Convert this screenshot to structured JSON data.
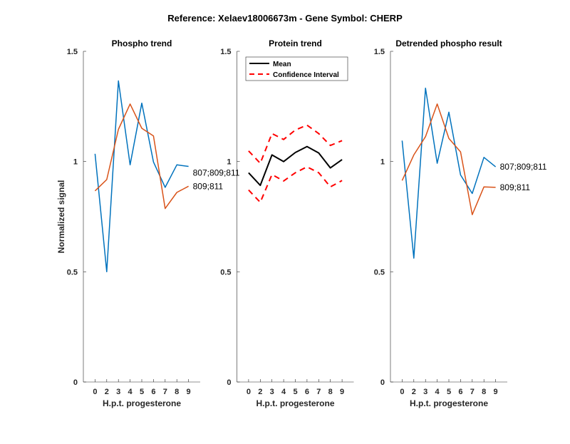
{
  "figure_title": "Reference:  Xelaev18006673m - Gene Symbol:  CHERP",
  "colors": {
    "site_a": "#0072BD",
    "site_b": "#D95319",
    "mean": "#000000",
    "ci": "#FF0000"
  },
  "chart_data": [
    {
      "type": "line",
      "title": "Phospho trend",
      "xlabel": "H.p.t. progesterone",
      "ylabel": "Normalized signal",
      "categories": [
        "0",
        "2",
        "3",
        "4",
        "5",
        "6",
        "7",
        "8",
        "9"
      ],
      "ylim": [
        0,
        1.5
      ],
      "yticks": [
        "0",
        "0.5",
        "1",
        "1.5"
      ],
      "grid": false,
      "series": [
        {
          "name": "807;809;811",
          "color": "#0072BD",
          "values": [
            1.035,
            0.5,
            1.366,
            0.985,
            1.265,
            0.998,
            0.883,
            0.985,
            0.978
          ]
        },
        {
          "name": "809;811",
          "color": "#D95319",
          "values": [
            0.867,
            0.918,
            1.146,
            1.261,
            1.151,
            1.116,
            0.787,
            0.86,
            0.888
          ]
        }
      ]
    },
    {
      "type": "line",
      "title": "Protein trend",
      "xlabel": "H.p.t. progesterone",
      "ylabel": "",
      "categories": [
        "0",
        "2",
        "3",
        "4",
        "5",
        "6",
        "7",
        "8",
        "9"
      ],
      "ylim": [
        0,
        1.5
      ],
      "yticks": [
        "0",
        "0.5",
        "1",
        "1.5"
      ],
      "grid": false,
      "legend": {
        "placement": "top-right",
        "entries": [
          "Mean",
          "Confidence Interval"
        ]
      },
      "series": [
        {
          "name": "Mean",
          "color": "#000000",
          "style": "solid",
          "values": [
            0.949,
            0.892,
            1.03,
            1.0,
            1.041,
            1.068,
            1.039,
            0.971,
            1.009
          ]
        },
        {
          "name": "Confidence Interval",
          "color": "#FF0000",
          "style": "dashed",
          "values": [
            1.048,
            0.992,
            1.127,
            1.1,
            1.143,
            1.165,
            1.127,
            1.073,
            1.095
          ]
        },
        {
          "name": "Confidence Interval",
          "color": "#FF0000",
          "style": "dashed",
          "values": [
            0.871,
            0.815,
            0.941,
            0.912,
            0.949,
            0.976,
            0.949,
            0.885,
            0.914
          ]
        }
      ]
    },
    {
      "type": "line",
      "title": "Detrended phospho result",
      "xlabel": "H.p.t. progesterone",
      "ylabel": "",
      "categories": [
        "0",
        "2",
        "3",
        "4",
        "5",
        "6",
        "7",
        "8",
        "9"
      ],
      "ylim": [
        0,
        1.5
      ],
      "yticks": [
        "0",
        "0.5",
        "1",
        "1.5"
      ],
      "grid": false,
      "series": [
        {
          "name": "807;809;811",
          "color": "#0072BD",
          "values": [
            1.095,
            0.562,
            1.333,
            0.992,
            1.224,
            0.939,
            0.855,
            1.019,
            0.976
          ]
        },
        {
          "name": "809;811",
          "color": "#D95319",
          "values": [
            0.914,
            1.03,
            1.113,
            1.261,
            1.105,
            1.044,
            0.759,
            0.885,
            0.883
          ]
        }
      ]
    }
  ]
}
